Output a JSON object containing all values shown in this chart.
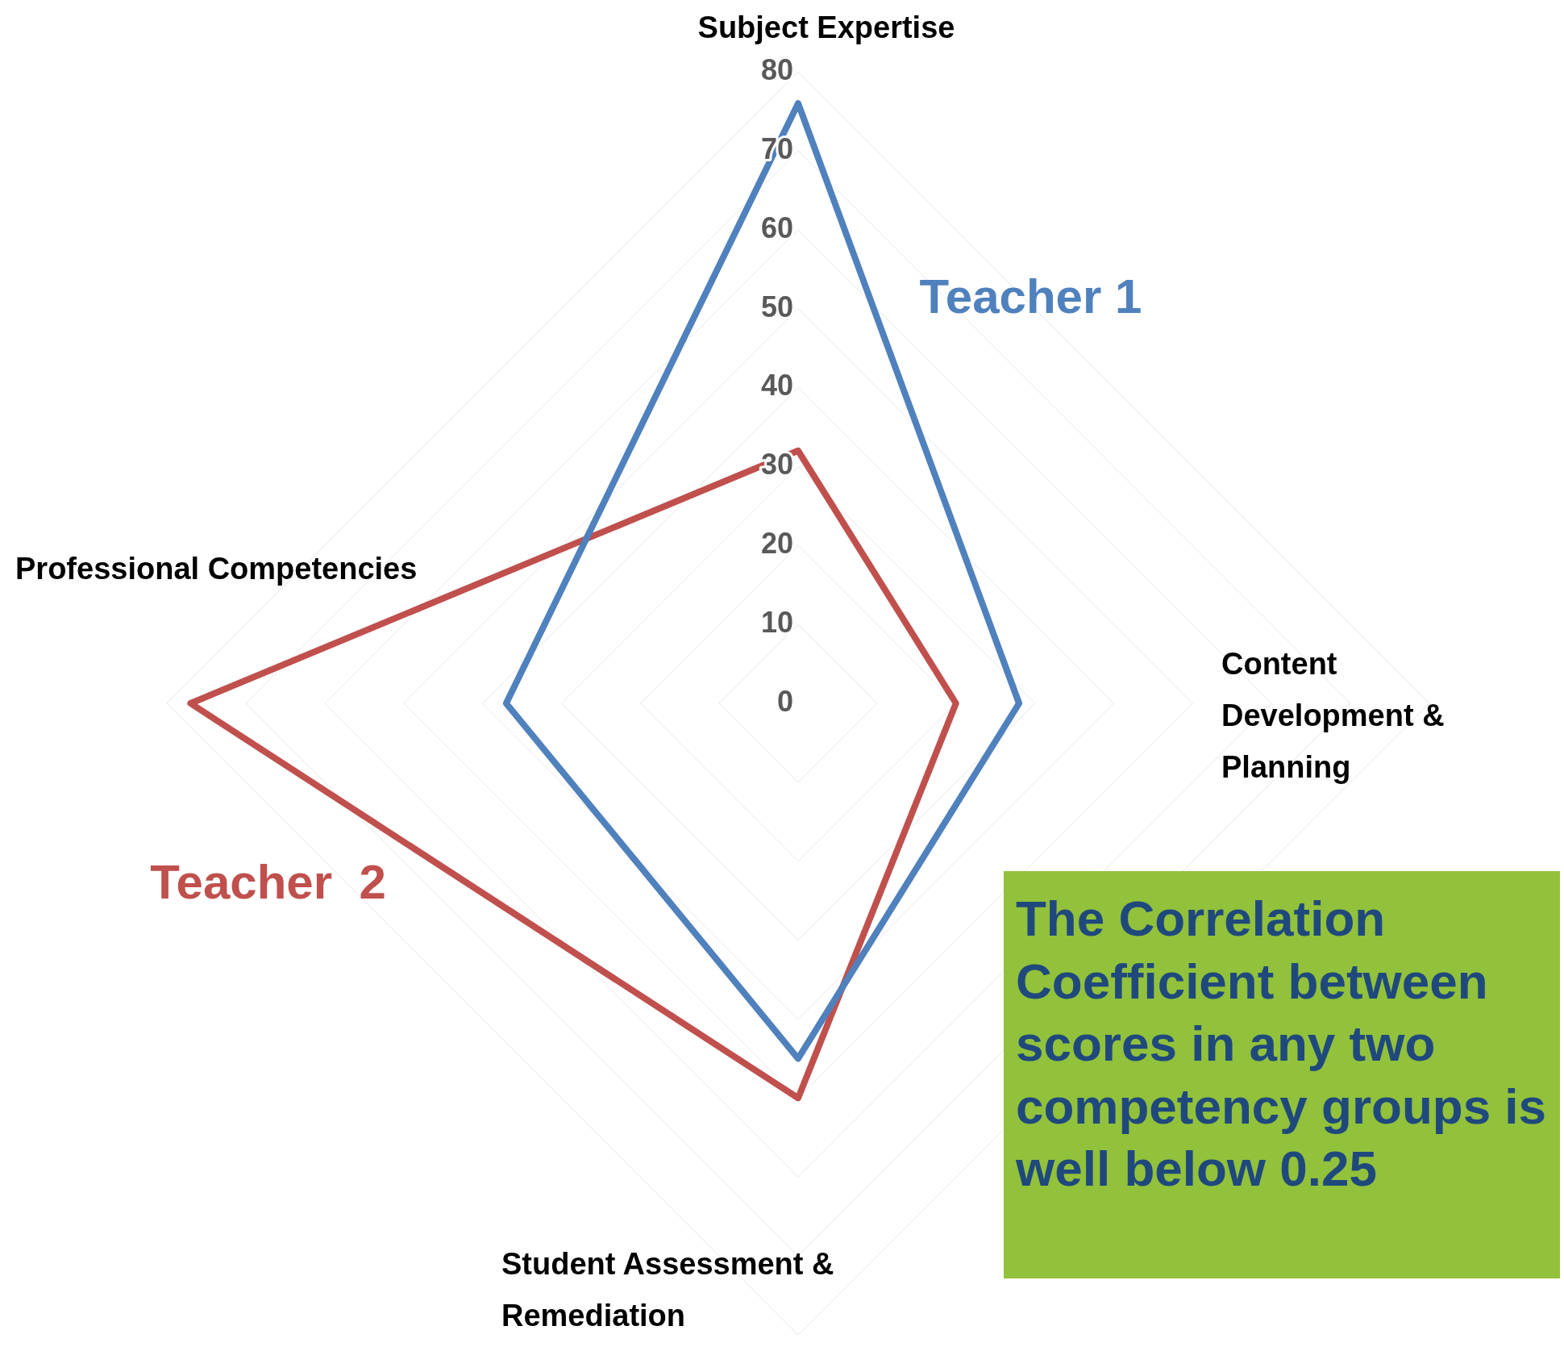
{
  "chart_data": {
    "type": "radar",
    "categories": [
      "Subject Expertise",
      "Content Development & Planning",
      "Student Assessment & Remediation",
      "Professional Competencies"
    ],
    "series": [
      {
        "name": "Teacher 1",
        "color": "#4f81bd",
        "values": [
          76,
          28,
          45,
          37
        ]
      },
      {
        "name": "Teacher  2",
        "color": "#c0504d",
        "values": [
          32,
          20,
          50,
          77
        ]
      }
    ],
    "ylim": [
      0,
      80
    ],
    "yticks": [
      0,
      10,
      20,
      30,
      40,
      50,
      60,
      70,
      80
    ],
    "grid": true,
    "legend": false,
    "marker": "none",
    "line_style": "solid",
    "annotations": [
      "The Correlation Coefficient between scores in any two competency groups is well below 0.25"
    ]
  }
}
